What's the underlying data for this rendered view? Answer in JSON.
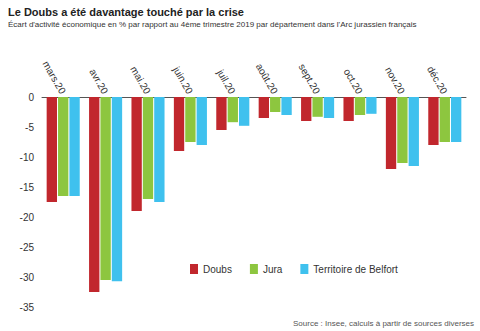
{
  "chart_data": {
    "type": "bar",
    "title": "Le Doubs a été davantage touché par la crise",
    "subtitle": "Écart d'activité économique en % par rapport au 4ème trimestre 2019 par département dans l'Arc jurassien français",
    "source": "Source : Insee, calculs à partir de sources diverses",
    "categories": [
      "mars.20",
      "avr.20",
      "mai.20",
      "juin.20",
      "juil.20",
      "août.20",
      "sept.20",
      "oct.20",
      "nov.20",
      "déc.20"
    ],
    "series": [
      {
        "name": "Doubs",
        "color": "#c1272d",
        "values": [
          -17.5,
          -32.5,
          -19,
          -9,
          -5.5,
          -3.5,
          -4,
          -4,
          -12,
          -8
        ]
      },
      {
        "name": "Jura",
        "color": "#8dc63f",
        "values": [
          -16.5,
          -30.5,
          -17,
          -7.5,
          -4.2,
          -2.5,
          -3.3,
          -3,
          -11,
          -7.5
        ]
      },
      {
        "name": "Territoire de Belfort",
        "color": "#3fc1ee",
        "values": [
          -16.5,
          -30.7,
          -17.5,
          -8,
          -4.8,
          -3,
          -3.5,
          -2.8,
          -11.5,
          -7.5
        ]
      }
    ],
    "ylim": [
      -35,
      0
    ],
    "yticks": [
      -35,
      -30,
      -25,
      -20,
      -15,
      -10,
      -5,
      0
    ],
    "grid": false,
    "legend": "bottom"
  }
}
